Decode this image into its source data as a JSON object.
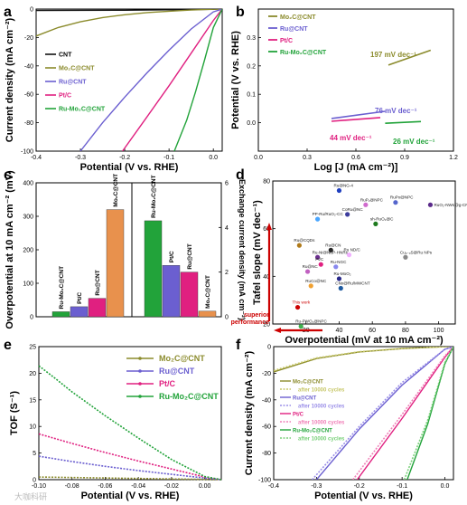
{
  "watermark": "大咖科研",
  "chart_data": [
    {
      "panel": "a",
      "type": "line",
      "xlabel": "Potential (V vs. RHE)",
      "ylabel": "Current density (mA cm⁻²)",
      "xlim": [
        -0.4,
        0.02
      ],
      "ylim": [
        -100,
        0
      ],
      "xticks": [
        "-0.4",
        "-0.3",
        "-0.2",
        "-0.1",
        "0.0"
      ],
      "yticks": [
        "-100",
        "-80",
        "-60",
        "-40",
        "-20",
        "0"
      ],
      "legend_position": "center-right",
      "series": [
        {
          "name": "CNT",
          "color": "#111111",
          "x": [
            -0.4,
            -0.2,
            0.0,
            0.01,
            0.02
          ],
          "y": [
            -1,
            -0.8,
            -0.2,
            0,
            0
          ]
        },
        {
          "name": "Mo₂C@CNT",
          "color": "#8b8b2c",
          "x": [
            -0.4,
            -0.35,
            -0.3,
            -0.25,
            -0.2,
            -0.15,
            -0.1,
            -0.05,
            0.0,
            0.02
          ],
          "y": [
            -19,
            -13,
            -9,
            -6,
            -4,
            -2.5,
            -1.5,
            -0.7,
            -0.1,
            0
          ]
        },
        {
          "name": "Ru@CNT",
          "color": "#6b5fd0",
          "x": [
            -0.3,
            -0.25,
            -0.2,
            -0.15,
            -0.1,
            -0.05,
            0.0,
            0.02
          ],
          "y": [
            -100,
            -80,
            -62,
            -45,
            -29,
            -14,
            -2,
            0
          ]
        },
        {
          "name": "Pt/C",
          "color": "#e02080",
          "x": [
            -0.205,
            -0.15,
            -0.1,
            -0.05,
            0.0,
            0.02
          ],
          "y": [
            -100,
            -76,
            -54,
            -31,
            -8,
            0
          ]
        },
        {
          "name": "Ru-Mo₂C@CNT",
          "color": "#22a33a",
          "x": [
            -0.088,
            -0.06,
            -0.04,
            -0.02,
            0.0,
            0.02
          ],
          "y": [
            -100,
            -78,
            -58,
            -36,
            -13,
            0
          ]
        }
      ]
    },
    {
      "panel": "b",
      "type": "line",
      "xlabel": "Log [J (mA cm⁻²)]",
      "ylabel": "Potential (V vs. RHE)",
      "xlim": [
        0.0,
        1.2
      ],
      "ylim": [
        -0.1,
        0.4
      ],
      "xticks": [
        "0.0",
        "0.3",
        "0.6",
        "0.9",
        "1.2"
      ],
      "yticks": [
        "0.0",
        "0.1",
        "0.2",
        "0.3"
      ],
      "legend_position": "top-left",
      "series": [
        {
          "name": "Mo₂C@CNT",
          "color": "#8b8b2c",
          "x": [
            0.8,
            1.06
          ],
          "y": [
            0.203,
            0.255
          ],
          "slope_label": "197 mV dec⁻¹"
        },
        {
          "name": "Ru@CNT",
          "color": "#6b5fd0",
          "x": [
            0.45,
            0.78
          ],
          "y": [
            0.015,
            0.04
          ],
          "slope_label": "76 mV dec⁻¹"
        },
        {
          "name": "Pt/C",
          "color": "#e02080",
          "x": [
            0.45,
            0.75
          ],
          "y": [
            0.005,
            0.018
          ],
          "slope_label": "44 mV dec⁻¹"
        },
        {
          "name": "Ru-Mo₂C@CNT",
          "color": "#22a33a",
          "x": [
            0.78,
            1.0
          ],
          "y": [
            -0.002,
            0.004
          ],
          "slope_label": "26 mV dec⁻¹"
        }
      ]
    },
    {
      "panel": "c",
      "type": "bar",
      "ylabel_left": "Overpotential at 10 mA cm⁻² (mV)",
      "ylabel_right": "Exchange current density (mA cm⁻²)",
      "ylim_left": [
        0,
        400
      ],
      "ylim_right": [
        0,
        6
      ],
      "yticks_left": [
        "0",
        "100",
        "200",
        "300",
        "400"
      ],
      "yticks_right": [
        "0",
        "2",
        "4",
        "6"
      ],
      "series": [
        {
          "name": "Overpotential",
          "categories": [
            "Ru-Mo₂C@CNT",
            "Pt/C",
            "Ru@CNT",
            "Mo₂C@CNT"
          ],
          "values": [
            15,
            30,
            55,
            320
          ],
          "colors": [
            "#22a33a",
            "#6b5fd0",
            "#e02080",
            "#e8914d"
          ]
        },
        {
          "name": "Exchange current density",
          "categories": [
            "Ru-Mo₂C@CNT",
            "Pt/C",
            "Ru@CNT",
            "Mo₂C@CNT"
          ],
          "values": [
            4.3,
            2.3,
            2.0,
            0.25
          ],
          "colors": [
            "#22a33a",
            "#6b5fd0",
            "#e02080",
            "#e8914d"
          ]
        }
      ]
    },
    {
      "panel": "d",
      "type": "scatter",
      "xlabel": "Overpotential (mV at 10 mA cm⁻²)",
      "ylabel": "Tafel slope (mV dec⁻¹)",
      "xlim": [
        0,
        110
      ],
      "ylim": [
        20,
        80
      ],
      "xticks": [
        "20",
        "40",
        "60",
        "80",
        "100"
      ],
      "yticks": [
        "20",
        "40",
        "60",
        "80"
      ],
      "arrow_label": "superior performance",
      "points": [
        {
          "label": "Ru@NG-4",
          "x": 40,
          "y": 76,
          "color": "#1f3fbf"
        },
        {
          "label": "RuP₂@NPC",
          "x": 56,
          "y": 70,
          "color": "#d06acd"
        },
        {
          "label": "RuPx@NPC",
          "x": 74,
          "y": 71,
          "color": "#5566cc"
        },
        {
          "label": "RuO₂-NWs@g-CN",
          "x": 95,
          "y": 70,
          "color": "#5a2a8a"
        },
        {
          "label": "PP-Ru/RuO₂-CC",
          "x": 27,
          "y": 64,
          "color": "#4aa6ff"
        },
        {
          "label": "CoRu@NC",
          "x": 45,
          "y": 66,
          "color": "#3c3c9c"
        },
        {
          "label": "sh-RuO₂@C",
          "x": 62,
          "y": 62,
          "color": "#1e7a1e"
        },
        {
          "label": "Ru@CQDs",
          "x": 16,
          "y": 53,
          "color": "#b07a1a"
        },
        {
          "label": "Ru@CN",
          "x": 35,
          "y": 51,
          "color": "#262626"
        },
        {
          "label": "Ru-Ni@Ni₂P-HNRs",
          "x": 27,
          "y": 48,
          "color": "#6c2f8f"
        },
        {
          "label": "Pt/C",
          "x": 29,
          "y": 45,
          "color": "#e02080"
        },
        {
          "label": "Ru ND/C",
          "x": 46,
          "y": 49,
          "color": "#f0b0ff"
        },
        {
          "label": "Cu₂₋ₓS@Ru NPs",
          "x": 80,
          "y": 48,
          "color": "#888888"
        },
        {
          "label": "Ru-NGC",
          "x": 38,
          "y": 44,
          "color": "#8888ee"
        },
        {
          "label": "Ru@NC",
          "x": 21,
          "y": 42,
          "color": "#c060c0"
        },
        {
          "label": "Ru-MoO₂",
          "x": 40,
          "y": 39,
          "color": "#2a2a8a"
        },
        {
          "label": "RuCo@NC",
          "x": 23,
          "y": 36,
          "color": "#f0a030"
        },
        {
          "label": "CNx@Ru/MWCNT",
          "x": 41,
          "y": 35,
          "color": "#1e5aa0"
        },
        {
          "label": "This work",
          "x": 15,
          "y": 27,
          "color": "#cc0000"
        },
        {
          "label": "Ru-PWO₄@NPC",
          "x": 17,
          "y": 19,
          "color": "#40b050"
        }
      ]
    },
    {
      "panel": "e",
      "type": "line",
      "xlabel": "Potential (V vs. RHE)",
      "ylabel": "TOF (S⁻¹)",
      "xlim": [
        -0.1,
        0.01
      ],
      "ylim": [
        0,
        25
      ],
      "xticks": [
        "-0.10",
        "-0.08",
        "-0.06",
        "-0.04",
        "-0.02",
        "0.00"
      ],
      "yticks": [
        "0",
        "5",
        "10",
        "15",
        "20",
        "25"
      ],
      "legend_position": "top-right",
      "series": [
        {
          "name": "Mo₂C@CNT",
          "color": "#8b8b2c",
          "x": [
            -0.1,
            0.01
          ],
          "y": [
            0.5,
            0.0
          ]
        },
        {
          "name": "Ru@CNT",
          "color": "#6b5fd0",
          "x": [
            -0.1,
            -0.08,
            -0.06,
            -0.04,
            -0.02,
            0.0,
            0.01
          ],
          "y": [
            4.4,
            3.4,
            2.5,
            1.7,
            1.0,
            0.3,
            0.0
          ]
        },
        {
          "name": "Pt/C",
          "color": "#e02080",
          "x": [
            -0.1,
            -0.08,
            -0.06,
            -0.04,
            -0.02,
            0.0,
            0.01
          ],
          "y": [
            8.6,
            6.8,
            5.1,
            3.5,
            2.0,
            0.5,
            0.0
          ]
        },
        {
          "name": "Ru-Mo₂C@CNT",
          "color": "#22a33a",
          "x": [
            -0.1,
            -0.09,
            -0.08,
            -0.06,
            -0.04,
            -0.02,
            0.0,
            0.01
          ],
          "y": [
            21.4,
            19.0,
            16.5,
            12.0,
            7.8,
            3.8,
            0.6,
            0.0
          ]
        }
      ]
    },
    {
      "panel": "f",
      "type": "line",
      "xlabel": "Potential (V vs. RHE)",
      "ylabel": "Current density (mA cm⁻²)",
      "xlim": [
        -0.4,
        0.02
      ],
      "ylim": [
        -100,
        0
      ],
      "xticks": [
        "-0.4",
        "-0.3",
        "-0.2",
        "-0.1",
        "0.0"
      ],
      "yticks": [
        "-100",
        "-80",
        "-60",
        "-40",
        "-20",
        "0"
      ],
      "legend_position": "bottom-left",
      "series": [
        {
          "name": "Mo₂C@CNT",
          "color": "#8b8b2c",
          "x": [
            -0.4,
            -0.3,
            -0.2,
            -0.1,
            0.0,
            0.02
          ],
          "y": [
            -19,
            -9,
            -4,
            -1.5,
            -0.1,
            0
          ]
        },
        {
          "name": "after 10000 cycles",
          "color": "#c8c86a",
          "dashed": true,
          "x": [
            -0.4,
            -0.3,
            -0.2,
            -0.1,
            0.0,
            0.02
          ],
          "y": [
            -18,
            -8.5,
            -3.8,
            -1.4,
            -0.1,
            0
          ]
        },
        {
          "name": "Ru@CNT",
          "color": "#6b5fd0",
          "x": [
            -0.3,
            -0.2,
            -0.1,
            0.0,
            0.02
          ],
          "y": [
            -100,
            -62,
            -29,
            -2,
            0
          ]
        },
        {
          "name": "after 10000 cycles",
          "color": "#9b8fe8",
          "dashed": true,
          "x": [
            -0.31,
            -0.2,
            -0.1,
            0.0,
            0.02
          ],
          "y": [
            -100,
            -60,
            -27,
            -2,
            0
          ]
        },
        {
          "name": "Pt/C",
          "color": "#e02080",
          "x": [
            -0.205,
            -0.1,
            0.0,
            0.02
          ],
          "y": [
            -100,
            -54,
            -8,
            0
          ]
        },
        {
          "name": "after 10000 cycles",
          "color": "#f080b8",
          "dashed": true,
          "x": [
            -0.215,
            -0.1,
            0.0,
            0.02
          ],
          "y": [
            -100,
            -51,
            -7,
            0
          ]
        },
        {
          "name": "Ru-Mo₂C@CNT",
          "color": "#22a33a",
          "x": [
            -0.088,
            -0.04,
            0.0,
            0.02
          ],
          "y": [
            -100,
            -58,
            -13,
            0
          ]
        },
        {
          "name": "after 10000 cycles",
          "color": "#7ad07a",
          "dashed": true,
          "x": [
            -0.095,
            -0.04,
            0.0,
            0.02
          ],
          "y": [
            -100,
            -55,
            -12,
            0
          ]
        }
      ]
    }
  ]
}
